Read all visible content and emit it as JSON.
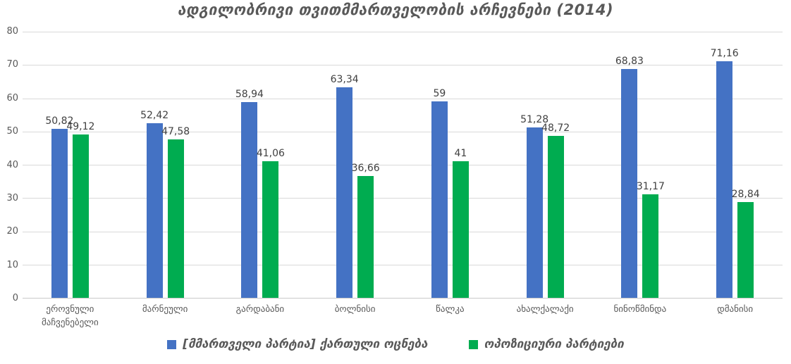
{
  "title": "ადგილობრივი თვითმმართველობის არჩევნები (2014)",
  "colors": {
    "series1": "#4472C4",
    "series2": "#00AC50",
    "grid": "#D9D9D9",
    "axis": "#C9C9C9",
    "title_text": "#595959",
    "tick_text": "#595959",
    "data_label_text": "#404040"
  },
  "chart_data": {
    "type": "bar",
    "title": "ადგილობრივი თვითმმართველობის არჩევნები (2014)",
    "categories": [
      "ეროვნული მაჩვენებელი",
      "მარნეული",
      "გარდაბანი",
      "ბოლნისი",
      "წალკა",
      "ახალქალაქი",
      "ნინოწმინდა",
      "დმანისი"
    ],
    "series": [
      {
        "name": "[მმართველი პარტია] ქართული ოცნება",
        "color": "#4472C4",
        "values": [
          50.82,
          52.42,
          58.94,
          63.34,
          59,
          51.28,
          68.83,
          71.16
        ],
        "labels": [
          "50,82",
          "52,42",
          "58,94",
          "63,34",
          "59",
          "51,28",
          "68,83",
          "71,16"
        ]
      },
      {
        "name": "ოპოზიციური პარტიები",
        "color": "#00AC50",
        "values": [
          49.12,
          47.58,
          41.06,
          36.66,
          41,
          48.72,
          31.17,
          28.84
        ],
        "labels": [
          "49,12",
          "47,58",
          "41,06",
          "36,66",
          "41",
          "48,72",
          "31,17",
          "28,84"
        ]
      }
    ],
    "xlabel": "",
    "ylabel": "",
    "ylim": [
      0,
      80
    ],
    "yticks": [
      "0",
      "10",
      "20",
      "30",
      "40",
      "50",
      "60",
      "70",
      "80"
    ],
    "grid": true,
    "legend_position": "bottom"
  }
}
